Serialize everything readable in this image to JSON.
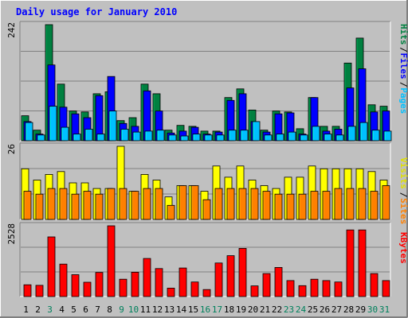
{
  "chart_data": {
    "type": "bar",
    "title": "Daily usage for January 2010",
    "categories": [
      "1",
      "2",
      "3",
      "4",
      "5",
      "6",
      "7",
      "8",
      "9",
      "10",
      "11",
      "12",
      "13",
      "14",
      "15",
      "16",
      "17",
      "18",
      "19",
      "20",
      "21",
      "22",
      "23",
      "24",
      "25",
      "26",
      "27",
      "28",
      "29",
      "30",
      "31"
    ],
    "weekend_categories": [
      "3",
      "9",
      "10",
      "16",
      "17",
      "23",
      "24",
      "30",
      "31"
    ],
    "panels": [
      {
        "id": "hits-files-pages",
        "ymax_label": "242",
        "ymax": 242,
        "legend": [
          {
            "text": "Hits",
            "color": "#008040"
          },
          {
            "text": "Files",
            "color": "#0000FF"
          },
          {
            "text": "Pages",
            "color": "#00C0FF"
          }
        ],
        "series": [
          {
            "name": "Hits",
            "color": "#008040",
            "values": [
              52,
              22,
              242,
              118,
              62,
              60,
              98,
              102,
              42,
              48,
              118,
              98,
              22,
              32,
              30,
              20,
              20,
              90,
              108,
              64,
              22,
              62,
              60,
              25,
              90,
              30,
              30,
              162,
              214,
              75,
              72
            ]
          },
          {
            "name": "Files",
            "color": "#0000FF",
            "values": [
              40,
              14,
              158,
              70,
              56,
              48,
              94,
              134,
              36,
              30,
              104,
              62,
              16,
              20,
              28,
              14,
              18,
              84,
              98,
              40,
              18,
              56,
              58,
              14,
              90,
              20,
              24,
              110,
              150,
              60,
              62
            ]
          },
          {
            "name": "Pages",
            "color": "#00C0FF",
            "values": [
              38,
              12,
              72,
              28,
              14,
              24,
              14,
              62,
              24,
              18,
              20,
              22,
              12,
              10,
              14,
              12,
              12,
              22,
              22,
              40,
              12,
              14,
              18,
              12,
              30,
              14,
              12,
              30,
              38,
              22,
              20
            ]
          }
        ]
      },
      {
        "id": "visits-sites",
        "ymax_label": "26",
        "ymax": 26,
        "legend": [
          {
            "text": "Visits",
            "color": "#E0E000"
          },
          {
            "text": "Sites",
            "color": "#FF8000"
          }
        ],
        "series": [
          {
            "name": "Visits",
            "color": "#FFFF00",
            "values": [
              18,
              14,
              16,
              17,
              13,
              13,
              11,
              11,
              26,
              10,
              16,
              14,
              8,
              12,
              12,
              10,
              19,
              15,
              19,
              14,
              12,
              11,
              15,
              15,
              19,
              18,
              18,
              18,
              18,
              17,
              14
            ]
          },
          {
            "name": "Sites",
            "color": "#FF8000",
            "values": [
              10,
              9,
              11,
              11,
              9,
              10,
              9,
              11,
              11,
              10,
              11,
              11,
              5,
              12,
              12,
              7,
              11,
              11,
              11,
              11,
              10,
              9,
              9,
              9,
              10,
              10,
              11,
              11,
              11,
              10,
              12
            ]
          }
        ]
      },
      {
        "id": "kbytes",
        "ymax_label": "2528",
        "ymax": 2528,
        "legend": [
          {
            "text": "KBytes",
            "color": "#FF0000"
          }
        ],
        "series": [
          {
            "name": "KBytes",
            "color": "#FF0000",
            "values": [
              420,
              400,
              2130,
              1160,
              780,
              510,
              860,
              2528,
              620,
              870,
              1360,
              1000,
              300,
              1020,
              520,
              250,
              1200,
              1460,
              1720,
              380,
              820,
              1040,
              570,
              390,
              620,
              570,
              520,
              2380,
              2380,
              820,
              570
            ]
          }
        ]
      }
    ]
  }
}
